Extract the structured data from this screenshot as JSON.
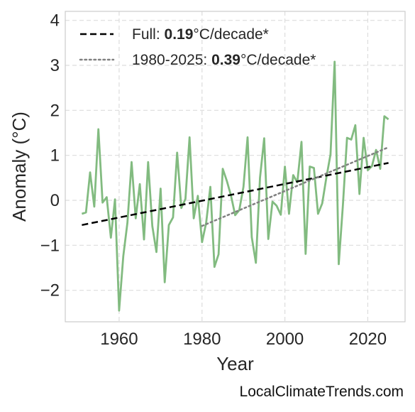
{
  "chart_data": {
    "type": "line",
    "xlabel": "Year",
    "ylabel": "Anomaly (°C)",
    "xlim": [
      1947,
      2029
    ],
    "ylim": [
      -2.7,
      4.2
    ],
    "xticks": [
      1960,
      1980,
      2000,
      2020
    ],
    "xtick_labels": [
      "1960",
      "1980",
      "2000",
      "2020"
    ],
    "yticks": [
      -2,
      -1,
      0,
      1,
      2,
      3,
      4
    ],
    "ytick_labels": [
      "−2",
      "−1",
      "0",
      "1",
      "2",
      "3",
      "4"
    ],
    "grid": true,
    "legend_position": "top-left",
    "series": [
      {
        "role": "anomaly",
        "color": "#82bb80",
        "x": [
          1951,
          1952,
          1953,
          1954,
          1955,
          1956,
          1957,
          1958,
          1959,
          1960,
          1961,
          1962,
          1963,
          1964,
          1965,
          1966,
          1967,
          1968,
          1969,
          1970,
          1971,
          1972,
          1973,
          1974,
          1975,
          1976,
          1977,
          1978,
          1979,
          1980,
          1981,
          1982,
          1983,
          1984,
          1985,
          1986,
          1987,
          1988,
          1989,
          1990,
          1991,
          1992,
          1993,
          1994,
          1995,
          1996,
          1997,
          1998,
          1999,
          2000,
          2001,
          2002,
          2003,
          2004,
          2005,
          2006,
          2007,
          2008,
          2009,
          2010,
          2011,
          2012,
          2013,
          2014,
          2015,
          2016,
          2017,
          2018,
          2019,
          2020,
          2021,
          2022,
          2023,
          2024,
          2025
        ],
        "y": [
          -0.3,
          -0.27,
          0.62,
          -0.14,
          1.58,
          -0.05,
          0.07,
          -0.83,
          0.02,
          -2.45,
          -1.24,
          -0.5,
          0.85,
          -0.4,
          0.36,
          -0.87,
          0.85,
          -0.57,
          -1.15,
          0.26,
          -1.82,
          -0.55,
          -0.38,
          1.06,
          -0.17,
          0.03,
          1.4,
          -0.4,
          0.1,
          -0.93,
          -0.5,
          0.3,
          -1.48,
          -1.2,
          0.7,
          0.43,
          0.1,
          -0.33,
          -0.22,
          0.3,
          1.4,
          -0.82,
          -1.39,
          0.5,
          1.38,
          -0.86,
          -0.03,
          -0.12,
          -0.32,
          0.75,
          -0.3,
          0.56,
          0.4,
          1.3,
          -1.19,
          0.75,
          0.72,
          -0.3,
          -0.07,
          0.5,
          1.02,
          3.08,
          -1.42,
          -0.1,
          1.39,
          1.35,
          1.67,
          0.14,
          1.39,
          0.67,
          0.76,
          1.12,
          0.7,
          1.87,
          1.8
        ]
      },
      {
        "role": "trend-full",
        "color": "#000000",
        "style": "dashed",
        "x": [
          1951,
          2025
        ],
        "y": [
          -0.55,
          0.83
        ]
      },
      {
        "role": "trend-recent",
        "color": "#808080",
        "style": "dotted",
        "x": [
          1980,
          2025
        ],
        "y": [
          -0.57,
          1.18
        ]
      }
    ],
    "legend": [
      {
        "prefix": "Full: ",
        "value": "0.19",
        "suffix": "°C/decade*",
        "color": "#000000",
        "style": "dashed"
      },
      {
        "prefix": "1980-2025: ",
        "value": "0.39",
        "suffix": "°C/decade*",
        "color": "#808080",
        "style": "dotted"
      }
    ]
  },
  "credit": "LocalClimateTrends.com"
}
